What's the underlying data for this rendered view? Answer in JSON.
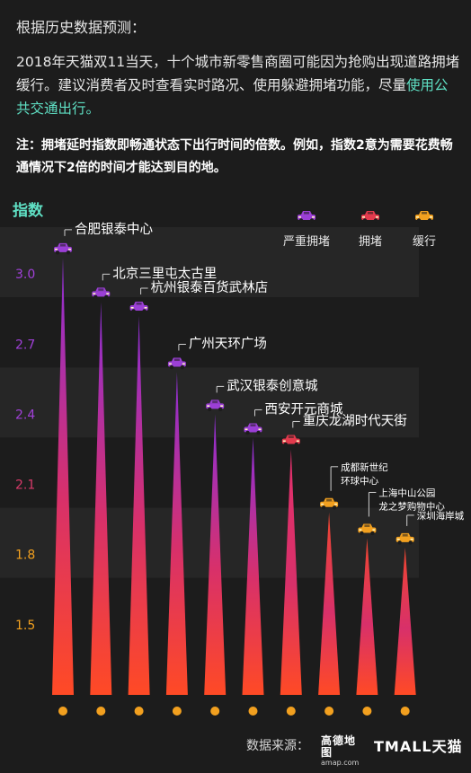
{
  "intro": {
    "title": "根据历史数据预测：",
    "body_prefix": "2018年天猫双11当天，十个城市新零售商圈可能因为抢购出现道路拥堵缓行。建议消费者及时查看实时路况、使用躲避拥堵功能，尽量",
    "body_highlight": "使用公共交通出行。"
  },
  "note": "注：拥堵延时指数即畅通状态下出行时间的倍数。例如，指数2意为需要花费畅通情况下2倍的时间才能达到目的地。",
  "source": {
    "label": "数据来源：",
    "amap_logo": "高德地图",
    "amap_domain": "amap.com",
    "tmall_logo": "TMALL天猫"
  },
  "colors": {
    "severe": "#9b3fd6",
    "congested": "#e23a4d",
    "slow": "#f2a01f",
    "band_dark": "#1c1c1c",
    "band_light": "#262626",
    "dot": "#f2a01f"
  },
  "chart_data": {
    "type": "bar",
    "ylabel": "指数",
    "ylim": [
      1.2,
      3.2
    ],
    "yticks": [
      3.0,
      2.7,
      2.4,
      2.1,
      1.8,
      1.5
    ],
    "legend": {
      "placement": "top-right",
      "entries": [
        {
          "name": "严重拥堵",
          "level": "severe"
        },
        {
          "name": "拥堵",
          "level": "congested"
        },
        {
          "name": "缓行",
          "level": "slow"
        }
      ]
    },
    "categories": [
      "合肥银泰中心",
      "北京三里屯太古里",
      "杭州银泰百货武林店",
      "广州天环广场",
      "武汉银泰创意城",
      "西安开元商城",
      "重庆龙湖时代天街",
      "成都新世纪环球中心",
      "上海中山公园龙之梦购物中心",
      "深圳海岸城"
    ],
    "label_lines": [
      [
        "合肥银泰中心"
      ],
      [
        "北京三里屯太古里"
      ],
      [
        "杭州银泰百货武林店"
      ],
      [
        "广州天环广场"
      ],
      [
        "武汉银泰创意城"
      ],
      [
        "西安开元商城"
      ],
      [
        "重庆龙湖时代天街"
      ],
      [
        "成都新世纪",
        "环球中心"
      ],
      [
        "上海中山公园",
        "龙之梦购物中心"
      ],
      [
        "深圳海岸城"
      ]
    ],
    "values": [
      3.07,
      2.88,
      2.82,
      2.58,
      2.4,
      2.3,
      2.25,
      1.98,
      1.87,
      1.83
    ],
    "levels": [
      "severe",
      "severe",
      "severe",
      "severe",
      "severe",
      "severe",
      "congested",
      "slow",
      "slow",
      "slow"
    ]
  }
}
